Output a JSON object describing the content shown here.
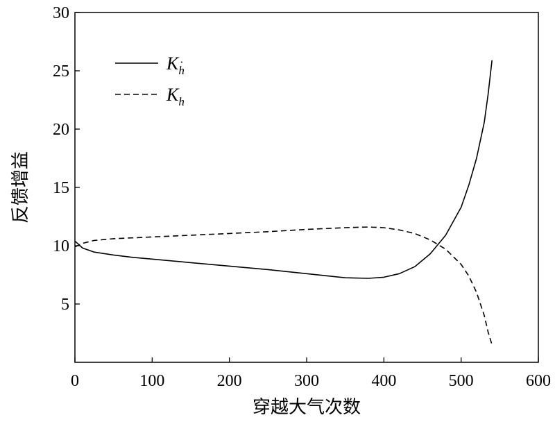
{
  "chart_data": {
    "type": "line",
    "title": "",
    "xlabel": "穿越大气次数",
    "ylabel": "反馈增益",
    "xlim": [
      0,
      600
    ],
    "ylim": [
      0,
      30
    ],
    "x_ticks": [
      0,
      100,
      200,
      300,
      400,
      500,
      600
    ],
    "y_ticks": [
      5,
      10,
      15,
      20,
      25,
      30
    ],
    "grid": false,
    "legend_position": "top-left",
    "series": [
      {
        "name": "K",
        "name_subscript": "h",
        "name_dot": "·",
        "line_style": "solid",
        "color": "#000000",
        "x": [
          0,
          10,
          25,
          50,
          75,
          100,
          150,
          200,
          250,
          300,
          350,
          380,
          400,
          420,
          440,
          460,
          480,
          500,
          510,
          520,
          530,
          535,
          540
        ],
        "y": [
          10.4,
          9.8,
          9.45,
          9.2,
          9.0,
          8.85,
          8.55,
          8.25,
          7.95,
          7.6,
          7.25,
          7.2,
          7.3,
          7.6,
          8.2,
          9.3,
          10.9,
          13.3,
          15.2,
          17.5,
          20.6,
          23.0,
          25.9
        ]
      },
      {
        "name": "K",
        "name_subscript": "h",
        "line_style": "dashed",
        "color": "#000000",
        "x": [
          0,
          10,
          25,
          50,
          100,
          150,
          200,
          250,
          300,
          350,
          380,
          400,
          420,
          440,
          460,
          480,
          500,
          510,
          520,
          530,
          535,
          540
        ],
        "y": [
          9.9,
          10.2,
          10.45,
          10.6,
          10.75,
          10.9,
          11.05,
          11.2,
          11.4,
          11.55,
          11.6,
          11.55,
          11.35,
          11.05,
          10.5,
          9.7,
          8.4,
          7.4,
          6.0,
          4.0,
          2.6,
          1.5
        ]
      }
    ]
  }
}
